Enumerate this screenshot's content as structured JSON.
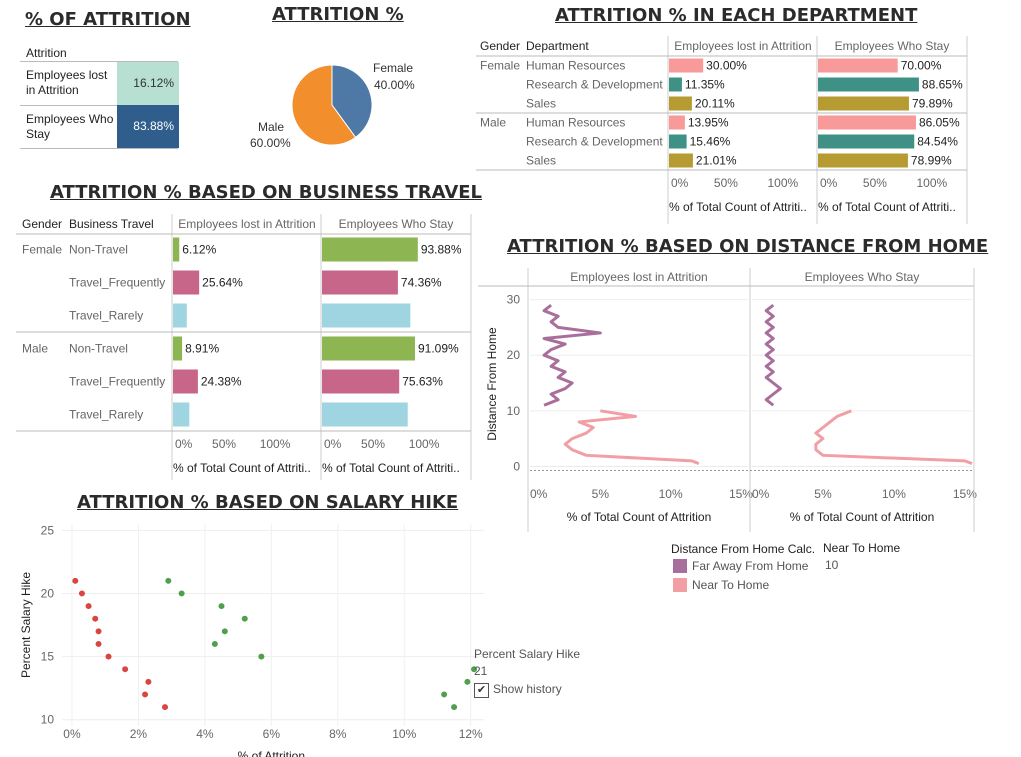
{
  "titles": {
    "pct_attrition": "% OF ATTRITION",
    "attrition_pct": "ATTRITION %",
    "dept": "ATTRITION % IN EACH DEPARTMENT",
    "travel": "ATTRITION % BASED ON BUSINESS TRAVEL",
    "distance": "ATTRITION % BASED ON DISTANCE FROM HOME",
    "salary": "ATTRITION % BASED ON SALARY HIKE"
  },
  "summary": {
    "header": "Attrition",
    "rows": [
      {
        "label": "Employees lost in Attrition",
        "value": "16.12%"
      },
      {
        "label": "Employees Who Stay",
        "value": "83.88%"
      }
    ]
  },
  "colors": {
    "lost_bg": "#b7dfd2",
    "stay_bg": "#2f5e8c",
    "pie_female": "#4e79a7",
    "pie_male": "#f28e2b",
    "hr": "#f89a9a",
    "rd": "#3e9184",
    "sales": "#b69b33",
    "nontravel": "#8db552",
    "freq": "#c8668a",
    "rarely": "#9ed5e0",
    "far": "#a86f9c",
    "near": "#f29ea5",
    "sal_red": "#d9453f",
    "sal_green": "#4f9f4b"
  },
  "chart_data": [
    {
      "type": "pie",
      "title": "ATTRITION %",
      "categories": [
        "Female",
        "Male"
      ],
      "values": [
        40.0,
        60.0
      ],
      "labels": [
        [
          "Female",
          "40.00%"
        ],
        [
          "Male",
          "60.00%"
        ]
      ]
    },
    {
      "type": "bar",
      "title": "ATTRITION % IN EACH DEPARTMENT",
      "row_headers": [
        "Gender",
        "Department"
      ],
      "panels": [
        "Employees lost in Attrition",
        "Employees Who Stay"
      ],
      "genders": [
        {
          "name": "Female",
          "rows": [
            {
              "dept": "Human Resources",
              "lost": 30.0,
              "lost_label": "30.00%",
              "stay": 70.0,
              "stay_label": "70.00%"
            },
            {
              "dept": "Research & Development",
              "lost": 11.35,
              "lost_label": "11.35%",
              "stay": 88.65,
              "stay_label": "88.65%"
            },
            {
              "dept": "Sales",
              "lost": 20.11,
              "lost_label": "20.11%",
              "stay": 79.89,
              "stay_label": "79.89%"
            }
          ]
        },
        {
          "name": "Male",
          "rows": [
            {
              "dept": "Human Resources",
              "lost": 13.95,
              "lost_label": "13.95%",
              "stay": 86.05,
              "stay_label": "86.05%"
            },
            {
              "dept": "Research & Development",
              "lost": 15.46,
              "lost_label": "15.46%",
              "stay": 84.54,
              "stay_label": "84.54%"
            },
            {
              "dept": "Sales",
              "lost": 21.01,
              "lost_label": "21.01%",
              "stay": 78.99,
              "stay_label": "78.99%"
            }
          ]
        }
      ],
      "ticks": [
        "0%",
        "50%",
        "100%"
      ],
      "xlabel": "% of Total Count of Attriti..",
      "xlim": [
        0,
        130
      ]
    },
    {
      "type": "bar",
      "title": "ATTRITION % BASED ON BUSINESS TRAVEL",
      "row_headers": [
        "Gender",
        "Business Travel"
      ],
      "panels": [
        "Employees lost in Attrition",
        "Employees Who Stay"
      ],
      "genders": [
        {
          "name": "Female",
          "rows": [
            {
              "travel": "Non-Travel",
              "lost": 6.12,
              "lost_label": "6.12%",
              "stay": 93.88,
              "stay_label": "93.88%"
            },
            {
              "travel": "Travel_Frequently",
              "lost": 25.64,
              "lost_label": "25.64%",
              "stay": 74.36,
              "stay_label": "74.36%"
            },
            {
              "travel": "Travel_Rarely",
              "lost": 13.5,
              "lost_label": "",
              "stay": 86.5,
              "stay_label": ""
            }
          ]
        },
        {
          "name": "Male",
          "rows": [
            {
              "travel": "Non-Travel",
              "lost": 8.91,
              "lost_label": "8.91%",
              "stay": 91.09,
              "stay_label": "91.09%"
            },
            {
              "travel": "Travel_Frequently",
              "lost": 24.38,
              "lost_label": "24.38%",
              "stay": 75.63,
              "stay_label": "75.63%"
            },
            {
              "travel": "Travel_Rarely",
              "lost": 16.0,
              "lost_label": "",
              "stay": 84.0,
              "stay_label": ""
            }
          ]
        }
      ],
      "ticks": [
        "0%",
        "50%",
        "100%"
      ],
      "xlabel": "% of Total Count of Attriti..",
      "xlim": [
        0,
        145
      ]
    },
    {
      "type": "line",
      "title": "ATTRITION % BASED ON DISTANCE FROM HOME",
      "panels": [
        "Employees lost in Attrition",
        "Employees Who Stay"
      ],
      "ylabel": "Distance From Home",
      "xlabel": "% of Total Count of Attrition",
      "yticks": [
        "0",
        "10",
        "20",
        "30"
      ],
      "xticks": [
        "0%",
        "5%",
        "10%",
        "15%"
      ],
      "ylim": [
        -1,
        31
      ],
      "xlim": [
        0,
        15.5
      ],
      "legend": {
        "title": "Distance From Home Calc.",
        "items": [
          "Far Away From Home",
          "Near To Home"
        ]
      },
      "tooltip": {
        "label": "Near To Home",
        "value": "10"
      },
      "series": [
        {
          "name": "Far Away From Home",
          "panel": 0,
          "points": [
            [
              1,
              11
            ],
            [
              2,
              12
            ],
            [
              1.5,
              13
            ],
            [
              2.5,
              14
            ],
            [
              3,
              15
            ],
            [
              2,
              16
            ],
            [
              2.5,
              17
            ],
            [
              1.5,
              18
            ],
            [
              2,
              19
            ],
            [
              1,
              20
            ],
            [
              1.5,
              21
            ],
            [
              2.5,
              22
            ],
            [
              1,
              23
            ],
            [
              5,
              24
            ],
            [
              2,
              25
            ],
            [
              1.5,
              26
            ],
            [
              2,
              27
            ],
            [
              1,
              28
            ],
            [
              1.5,
              29
            ]
          ]
        },
        {
          "name": "Far Away From Home",
          "panel": 1,
          "points": [
            [
              1.5,
              11
            ],
            [
              1,
              12
            ],
            [
              1.5,
              13
            ],
            [
              2,
              14
            ],
            [
              1.5,
              15
            ],
            [
              1,
              16
            ],
            [
              1.5,
              17
            ],
            [
              1,
              18
            ],
            [
              1.5,
              19
            ],
            [
              1,
              20
            ],
            [
              1.5,
              21
            ],
            [
              1,
              22
            ],
            [
              1.5,
              23
            ],
            [
              1,
              24
            ],
            [
              1.5,
              25
            ],
            [
              1,
              26
            ],
            [
              1.5,
              27
            ],
            [
              1,
              28
            ],
            [
              1.5,
              29
            ]
          ]
        },
        {
          "name": "Near To Home",
          "panel": 0,
          "points": [
            [
              12,
              0.5
            ],
            [
              11.5,
              1
            ],
            [
              4,
              2
            ],
            [
              3,
              3
            ],
            [
              2.5,
              4
            ],
            [
              3,
              5
            ],
            [
              4,
              6
            ],
            [
              4.5,
              7
            ],
            [
              3.5,
              8
            ],
            [
              7.5,
              9
            ],
            [
              5,
              10
            ]
          ]
        },
        {
          "name": "Near To Home",
          "panel": 1,
          "points": [
            [
              15.5,
              0.5
            ],
            [
              15,
              1
            ],
            [
              5,
              2
            ],
            [
              4.5,
              3
            ],
            [
              4.5,
              4
            ],
            [
              5,
              5
            ],
            [
              4.5,
              6
            ],
            [
              5,
              7
            ],
            [
              5.5,
              8
            ],
            [
              6,
              9
            ],
            [
              7,
              10
            ]
          ]
        }
      ]
    },
    {
      "type": "scatter",
      "title": "ATTRITION % BASED ON SALARY HIKE",
      "xlabel": "% of Attrition",
      "ylabel": "Percent Salary Hike",
      "xticks": [
        "0%",
        "2%",
        "4%",
        "6%",
        "8%",
        "10%",
        "12%"
      ],
      "yticks": [
        "10",
        "15",
        "20",
        "25"
      ],
      "xlim": [
        -0.3,
        12.4
      ],
      "ylim": [
        9.5,
        25.5
      ],
      "tooltip": {
        "label": "Percent Salary Hike",
        "value": "21",
        "checkbox": "Show history"
      },
      "series": [
        {
          "name": "red",
          "points": [
            [
              0.1,
              21
            ],
            [
              0.3,
              20
            ],
            [
              0.5,
              19
            ],
            [
              0.7,
              18
            ],
            [
              0.8,
              17
            ],
            [
              0.8,
              16
            ],
            [
              1.1,
              15
            ],
            [
              1.6,
              14
            ],
            [
              2.3,
              13
            ],
            [
              2.2,
              12
            ],
            [
              2.8,
              11
            ]
          ]
        },
        {
          "name": "green",
          "points": [
            [
              2.9,
              21
            ],
            [
              3.3,
              20
            ],
            [
              4.5,
              19
            ],
            [
              5.2,
              18
            ],
            [
              4.6,
              17
            ],
            [
              4.3,
              16
            ],
            [
              5.7,
              15
            ],
            [
              12.1,
              14
            ],
            [
              11.9,
              13
            ],
            [
              11.2,
              12
            ],
            [
              11.5,
              11
            ]
          ]
        }
      ]
    }
  ]
}
